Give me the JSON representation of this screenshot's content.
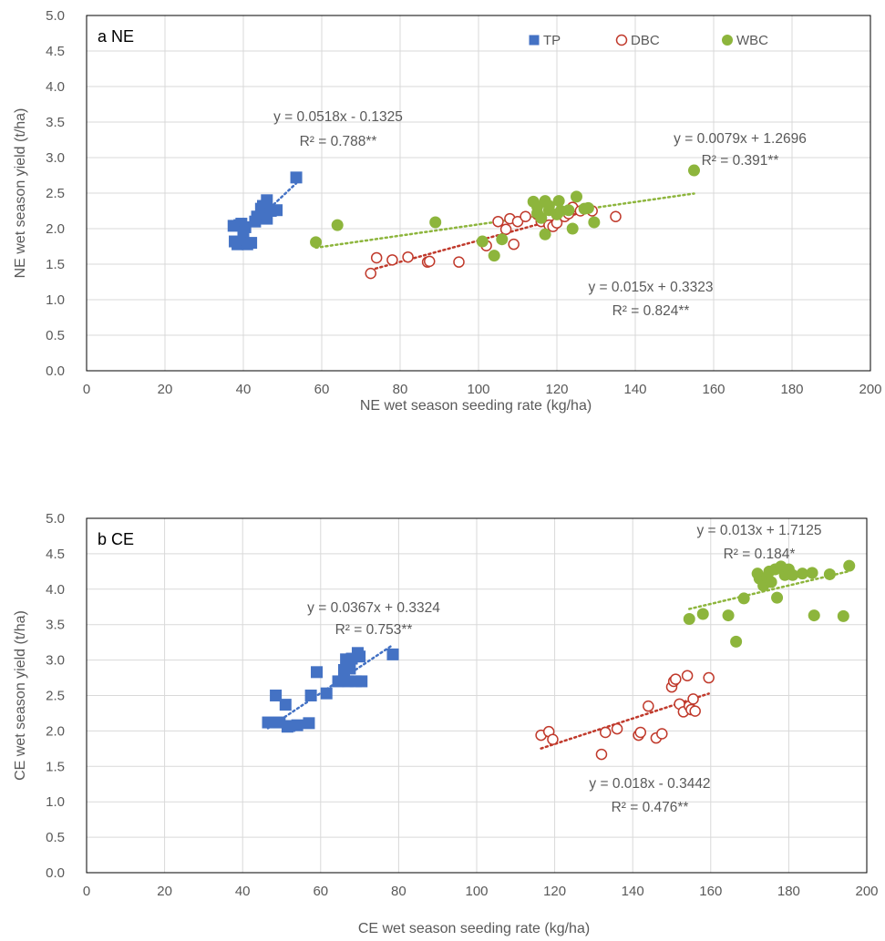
{
  "colors": {
    "TP": "#4472C4",
    "DBC": "#C0392B",
    "WBC": "#8DB53C",
    "grid": "#D9D9D9",
    "frame": "#000000"
  },
  "legend": [
    {
      "name": "TP",
      "marker": "square"
    },
    {
      "name": "DBC",
      "marker": "circle-open"
    },
    {
      "name": "WBC",
      "marker": "circle-filled"
    }
  ],
  "chart_data": [
    {
      "type": "scatter",
      "panel_label": "a NE",
      "xlabel": "NE wet season seeding rate (kg/ha)",
      "ylabel": "NE wet season yield (t/ha)",
      "xlim": [
        0,
        200
      ],
      "ylim": [
        0,
        5.0
      ],
      "x_ticks": [
        "0",
        "20",
        "40",
        "60",
        "80",
        "100",
        "120",
        "140",
        "160",
        "180",
        "200"
      ],
      "y_ticks": [
        "0.0",
        "0.5",
        "1.0",
        "1.5",
        "2.0",
        "2.5",
        "3.0",
        "3.5",
        "4.0",
        "4.5",
        "5.0"
      ],
      "grid": true,
      "legend_position": "top-right",
      "series": [
        {
          "name": "TP",
          "marker": "square",
          "points": [
            [
              37.5,
              2.04
            ],
            [
              37.8,
              1.82
            ],
            [
              38.5,
              1.78
            ],
            [
              39,
              2.05
            ],
            [
              39.5,
              2.07
            ],
            [
              40,
              1.95
            ],
            [
              40,
              1.85
            ],
            [
              40.5,
              2.02
            ],
            [
              41,
              1.78
            ],
            [
              42,
              1.8
            ],
            [
              43,
              2.1
            ],
            [
              43.5,
              2.17
            ],
            [
              44,
              2.15
            ],
            [
              44.5,
              2.28
            ],
            [
              45,
              2.32
            ],
            [
              45.5,
              2.2
            ],
            [
              46,
              2.4
            ],
            [
              46,
              2.14
            ],
            [
              47,
              2.25
            ],
            [
              48.5,
              2.26
            ],
            [
              53.5,
              2.72
            ]
          ],
          "trend": {
            "x": [
              37.5,
              53.5
            ],
            "slope": 0.0518,
            "intercept": -0.1325
          }
        },
        {
          "name": "DBC",
          "marker": "circle-open",
          "points": [
            [
              72.5,
              1.37
            ],
            [
              74,
              1.59
            ],
            [
              78,
              1.56
            ],
            [
              82,
              1.6
            ],
            [
              87,
              1.53
            ],
            [
              87.5,
              1.54
            ],
            [
              95,
              1.53
            ],
            [
              102,
              1.76
            ],
            [
              105,
              2.1
            ],
            [
              107,
              1.99
            ],
            [
              108,
              2.14
            ],
            [
              109,
              1.78
            ],
            [
              110,
              2.1
            ],
            [
              112,
              2.17
            ],
            [
              115,
              2.2
            ],
            [
              116,
              2.1
            ],
            [
              118,
              2.05
            ],
            [
              119,
              2.03
            ],
            [
              120,
              2.08
            ],
            [
              122,
              2.17
            ],
            [
              123,
              2.21
            ],
            [
              124,
              2.3
            ],
            [
              126,
              2.25
            ],
            [
              129,
              2.25
            ],
            [
              135,
              2.17
            ]
          ],
          "trend": {
            "x": [
              72.5,
              130
            ],
            "slope": 0.015,
            "intercept": 0.3323
          }
        },
        {
          "name": "WBC",
          "marker": "circle-filled",
          "points": [
            [
              58.5,
              1.81
            ],
            [
              64,
              2.05
            ],
            [
              89,
              2.09
            ],
            [
              101,
              1.82
            ],
            [
              104,
              1.62
            ],
            [
              106,
              1.85
            ],
            [
              114,
              2.38
            ],
            [
              115,
              2.22
            ],
            [
              115,
              2.31
            ],
            [
              116,
              2.15
            ],
            [
              117,
              1.92
            ],
            [
              117,
              2.39
            ],
            [
              118,
              2.26
            ],
            [
              118,
              2.32
            ],
            [
              120,
              2.2
            ],
            [
              120.5,
              2.39
            ],
            [
              121,
              2.25
            ],
            [
              123,
              2.26
            ],
            [
              124,
              2.0
            ],
            [
              125,
              2.45
            ],
            [
              127,
              2.28
            ],
            [
              128,
              2.29
            ],
            [
              129.5,
              2.09
            ],
            [
              155,
              2.82
            ]
          ],
          "trend": {
            "x": [
              58.5,
              155
            ],
            "slope": 0.0079,
            "intercept": 1.2696
          }
        }
      ],
      "annotations": [
        {
          "series": "TP",
          "equation": "y = 0.0518x - 0.1325",
          "r2": "R² = 0.788**"
        },
        {
          "series": "WBC",
          "equation": "y = 0.0079x + 1.2696",
          "r2": "R² = 0.391**"
        },
        {
          "series": "DBC",
          "equation": "y = 0.015x + 0.3323",
          "r2": "R² = 0.824**"
        }
      ]
    },
    {
      "type": "scatter",
      "panel_label": "b CE",
      "xlabel": "CE wet season seeding rate (kg/ha)",
      "ylabel": "CE wet season yield (t/ha)",
      "xlim": [
        0,
        200
      ],
      "ylim": [
        0,
        5.0
      ],
      "x_ticks": [
        "0",
        "20",
        "40",
        "60",
        "80",
        "100",
        "120",
        "140",
        "160",
        "180",
        "200"
      ],
      "y_ticks": [
        "0.0",
        "0.5",
        "1.0",
        "1.5",
        "2.0",
        "2.5",
        "3.0",
        "3.5",
        "4.0",
        "4.5",
        "5.0"
      ],
      "grid": true,
      "series": [
        {
          "name": "TP",
          "marker": "square",
          "points": [
            [
              46.5,
              2.12
            ],
            [
              48.5,
              2.5
            ],
            [
              49.5,
              2.12
            ],
            [
              51,
              2.37
            ],
            [
              51.5,
              2.06
            ],
            [
              52,
              2.07
            ],
            [
              54,
              2.08
            ],
            [
              57,
              2.11
            ],
            [
              57.5,
              2.5
            ],
            [
              59,
              2.83
            ],
            [
              61.5,
              2.53
            ],
            [
              64.5,
              2.7
            ],
            [
              66,
              2.86
            ],
            [
              66.5,
              3.01
            ],
            [
              67,
              2.7
            ],
            [
              67.5,
              2.88
            ],
            [
              68,
              3.02
            ],
            [
              69,
              2.7
            ],
            [
              69.5,
              3.1
            ],
            [
              70,
              3.05
            ],
            [
              70.5,
              2.7
            ],
            [
              78.5,
              3.08
            ]
          ],
          "trend": {
            "x": [
              46.5,
              78.5
            ],
            "slope": 0.0367,
            "intercept": 0.3324
          }
        },
        {
          "name": "DBC",
          "marker": "circle-open",
          "points": [
            [
              116.5,
              1.94
            ],
            [
              118.5,
              1.99
            ],
            [
              119.5,
              1.88
            ],
            [
              132,
              1.67
            ],
            [
              133,
              1.98
            ],
            [
              136,
              2.03
            ],
            [
              141.5,
              1.94
            ],
            [
              142,
              1.98
            ],
            [
              144,
              2.35
            ],
            [
              146,
              1.9
            ],
            [
              147.5,
              1.96
            ],
            [
              150,
              2.62
            ],
            [
              150.5,
              2.7
            ],
            [
              151,
              2.73
            ],
            [
              152,
              2.38
            ],
            [
              153,
              2.27
            ],
            [
              154,
              2.78
            ],
            [
              154.5,
              2.35
            ],
            [
              155,
              2.3
            ],
            [
              155.5,
              2.45
            ],
            [
              156,
              2.28
            ],
            [
              159.5,
              2.75
            ]
          ],
          "trend": {
            "x": [
              116.5,
              159.5
            ],
            "slope": 0.018,
            "intercept": -0.3442
          }
        },
        {
          "name": "WBC",
          "marker": "circle-filled",
          "points": [
            [
              154.5,
              3.58
            ],
            [
              158,
              3.65
            ],
            [
              164.5,
              3.63
            ],
            [
              166.5,
              3.26
            ],
            [
              168.5,
              3.87
            ],
            [
              172,
              4.22
            ],
            [
              172.5,
              4.15
            ],
            [
              173.5,
              4.05
            ],
            [
              174.5,
              4.17
            ],
            [
              175,
              4.25
            ],
            [
              175.5,
              4.1
            ],
            [
              176.5,
              4.28
            ],
            [
              177,
              3.88
            ],
            [
              178,
              4.32
            ],
            [
              179,
              4.2
            ],
            [
              180,
              4.28
            ],
            [
              181,
              4.2
            ],
            [
              183.5,
              4.22
            ],
            [
              186,
              4.23
            ],
            [
              186.5,
              3.63
            ],
            [
              190.5,
              4.21
            ],
            [
              194,
              3.62
            ],
            [
              195.5,
              4.33
            ]
          ],
          "trend": {
            "x": [
              154.5,
              195.5
            ],
            "slope": 0.013,
            "intercept": 1.7125
          }
        }
      ],
      "annotations": [
        {
          "series": "WBC",
          "equation": "y = 0.013x + 1.7125",
          "r2": "R² = 0.184*"
        },
        {
          "series": "TP",
          "equation": "y = 0.0367x + 0.3324",
          "r2": "R² = 0.753**"
        },
        {
          "series": "DBC",
          "equation": "y = 0.018x - 0.3442",
          "r2": "R² = 0.476**"
        }
      ]
    }
  ]
}
